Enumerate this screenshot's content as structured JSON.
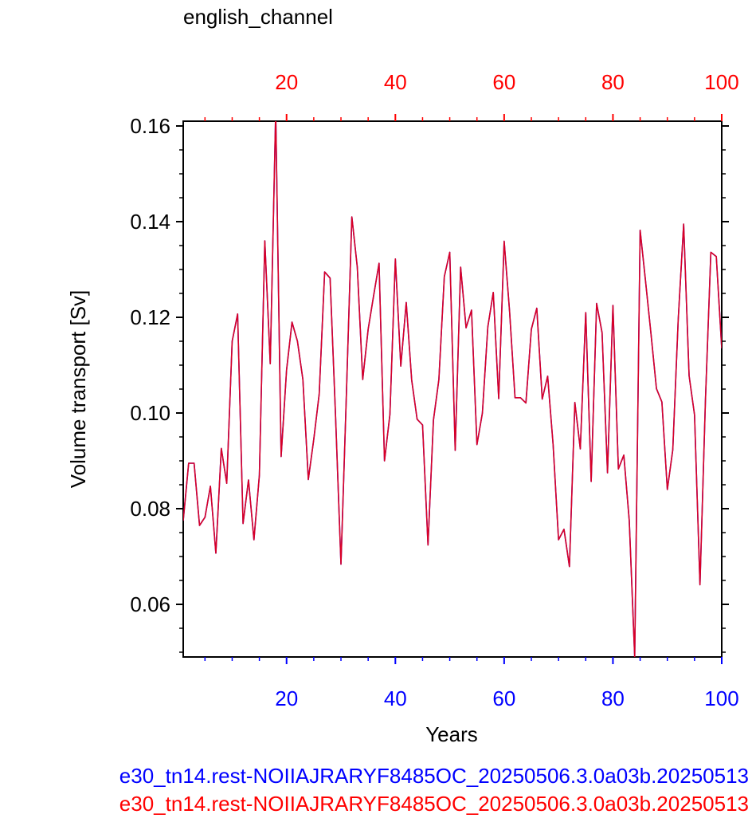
{
  "chart_data": {
    "type": "line",
    "title": "english_channel",
    "xlabel": "Years",
    "ylabel": "Volume transport [Sv]",
    "xlim": [
      1,
      100
    ],
    "ylim": [
      0.049,
      0.161
    ],
    "x_ticks": [
      20,
      40,
      60,
      80,
      100
    ],
    "y_ticks": [
      0.06,
      0.08,
      0.1,
      0.12,
      0.14,
      0.16
    ],
    "y_tick_labels": [
      "0.06",
      "0.08",
      "0.10",
      "0.12",
      "0.14",
      "0.16"
    ],
    "bottom_axis_color": "#0000ff",
    "top_axis_color": "#ff0000",
    "series": [
      {
        "name": "e30_tn14.rest-NOIIAJRARYF8485OC_20250506.3.0a03b.20250513",
        "color": "#0000ff",
        "x": [
          1,
          2,
          3,
          4,
          5,
          6,
          7,
          8,
          9,
          10,
          11,
          12,
          13,
          14,
          15,
          16,
          17,
          18,
          19,
          20,
          21,
          22,
          23,
          24,
          25,
          26,
          27,
          28,
          29,
          30,
          31,
          32,
          33,
          34,
          35,
          36,
          37,
          38,
          39,
          40,
          41,
          42,
          43,
          44,
          45,
          46,
          47,
          48,
          49,
          50,
          51,
          52,
          53,
          54,
          55,
          56,
          57,
          58,
          59,
          60,
          61,
          62,
          63,
          64,
          65,
          66,
          67,
          68,
          69,
          70,
          71,
          72,
          73,
          74,
          75,
          76,
          77,
          78,
          79,
          80,
          81,
          82,
          83,
          84,
          85,
          86,
          87,
          88,
          89,
          90,
          91,
          92,
          93,
          94,
          95,
          96,
          97,
          98,
          99,
          100
        ],
        "values": [
          0.0775,
          0.0895,
          0.0895,
          0.0765,
          0.0782,
          0.0847,
          0.0707,
          0.0926,
          0.0853,
          0.115,
          0.1207,
          0.0769,
          0.086,
          0.0735,
          0.087,
          0.136,
          0.1103,
          0.163,
          0.0909,
          0.109,
          0.119,
          0.115,
          0.107,
          0.0861,
          0.0945,
          0.104,
          0.1295,
          0.1282,
          0.0995,
          0.0684,
          0.104,
          0.141,
          0.1305,
          0.107,
          0.1175,
          0.1245,
          0.1313,
          0.09,
          0.0997,
          0.1322,
          0.1098,
          0.1231,
          0.1069,
          0.0987,
          0.0975,
          0.0724,
          0.0985,
          0.107,
          0.1285,
          0.1336,
          0.0922,
          0.1305,
          0.1178,
          0.1215,
          0.0934,
          0.1,
          0.118,
          0.1252,
          0.103,
          0.1359,
          0.1212,
          0.1032,
          0.1032,
          0.1021,
          0.1175,
          0.1219,
          0.1029,
          0.1077,
          0.0934,
          0.0735,
          0.0757,
          0.0679,
          0.1022,
          0.0925,
          0.121,
          0.0857,
          0.1229,
          0.1168,
          0.0875,
          0.1225,
          0.0883,
          0.0912,
          0.0775,
          0.049,
          0.1382,
          0.1275,
          0.1165,
          0.1051,
          0.1023,
          0.084,
          0.0923,
          0.1195,
          0.1395,
          0.1078,
          0.0996,
          0.0641,
          0.1025,
          0.1336,
          0.1327,
          0.1135
        ]
      },
      {
        "name": "e30_tn14.rest-NOIIAJRARYF8485OC_20250506.3.0a03b.20250513",
        "color": "#ff0000",
        "x": [
          1,
          2,
          3,
          4,
          5,
          6,
          7,
          8,
          9,
          10,
          11,
          12,
          13,
          14,
          15,
          16,
          17,
          18,
          19,
          20,
          21,
          22,
          23,
          24,
          25,
          26,
          27,
          28,
          29,
          30,
          31,
          32,
          33,
          34,
          35,
          36,
          37,
          38,
          39,
          40,
          41,
          42,
          43,
          44,
          45,
          46,
          47,
          48,
          49,
          50,
          51,
          52,
          53,
          54,
          55,
          56,
          57,
          58,
          59,
          60,
          61,
          62,
          63,
          64,
          65,
          66,
          67,
          68,
          69,
          70,
          71,
          72,
          73,
          74,
          75,
          76,
          77,
          78,
          79,
          80,
          81,
          82,
          83,
          84,
          85,
          86,
          87,
          88,
          89,
          90,
          91,
          92,
          93,
          94,
          95,
          96,
          97,
          98,
          99,
          100
        ],
        "values": [
          0.0775,
          0.0895,
          0.0895,
          0.0765,
          0.0782,
          0.0847,
          0.0707,
          0.0926,
          0.0853,
          0.115,
          0.1207,
          0.0769,
          0.086,
          0.0735,
          0.087,
          0.136,
          0.1103,
          0.163,
          0.0909,
          0.109,
          0.119,
          0.115,
          0.107,
          0.0861,
          0.0945,
          0.104,
          0.1295,
          0.1282,
          0.0995,
          0.0684,
          0.104,
          0.141,
          0.1305,
          0.107,
          0.1175,
          0.1245,
          0.1313,
          0.09,
          0.0997,
          0.1322,
          0.1098,
          0.1231,
          0.1069,
          0.0987,
          0.0975,
          0.0724,
          0.0985,
          0.107,
          0.1285,
          0.1336,
          0.0922,
          0.1305,
          0.1178,
          0.1215,
          0.0934,
          0.1,
          0.118,
          0.1252,
          0.103,
          0.1359,
          0.1212,
          0.1032,
          0.1032,
          0.1021,
          0.1175,
          0.1219,
          0.1029,
          0.1077,
          0.0934,
          0.0735,
          0.0757,
          0.0679,
          0.1022,
          0.0925,
          0.121,
          0.0857,
          0.1229,
          0.1168,
          0.0875,
          0.1225,
          0.0883,
          0.0912,
          0.0775,
          0.049,
          0.1382,
          0.1275,
          0.1165,
          0.1051,
          0.1023,
          0.084,
          0.0923,
          0.1195,
          0.1395,
          0.1078,
          0.0996,
          0.0641,
          0.1025,
          0.1336,
          0.1327,
          0.1135
        ]
      }
    ],
    "grid": false,
    "legend_placement": "bottom"
  }
}
